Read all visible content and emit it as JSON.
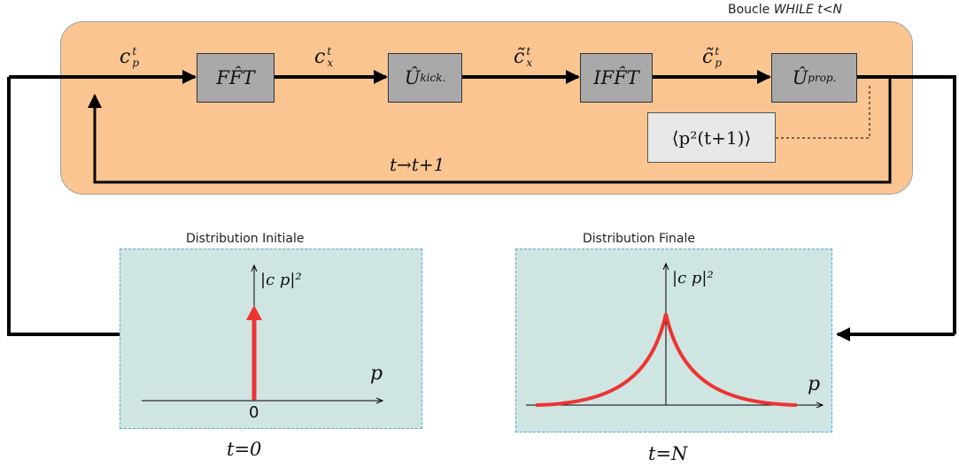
{
  "loop": {
    "caption_prefix": "Boucle",
    "caption_condition": "WHILE t<N",
    "feedback_label": "t→t+1"
  },
  "signals": {
    "c_p": {
      "base": "c",
      "sup": "t",
      "sub": "p"
    },
    "c_x": {
      "base": "c",
      "sup": "t",
      "sub": "x"
    },
    "c_tilde_x": {
      "base": "c̃",
      "sup": "t",
      "sub": "x"
    },
    "c_tilde_p": {
      "base": "c̃",
      "sup": "t",
      "sub": "p"
    }
  },
  "blocks": {
    "fft": "FF̂T",
    "u_kick": {
      "base": "Û",
      "sub": "kick."
    },
    "ifft": "IFF̂T",
    "u_prop": {
      "base": "Û",
      "sub": "prop."
    },
    "observable": "⟨p²(t+1)⟩"
  },
  "panels": {
    "initial": {
      "title": "Distribution Initiale",
      "ylabel": "|c p|²",
      "xlabel": "p",
      "origin_label": "0",
      "time_label": "t=0"
    },
    "final": {
      "title": "Distribution Finale",
      "ylabel": "|c p|²",
      "xlabel": "p",
      "time_label": "t=N"
    }
  },
  "colors": {
    "loop_fill": "#fac591",
    "block_fill": "#a9a9a9",
    "panel_fill": "#cfe5e2",
    "curve": "#ee3333"
  }
}
